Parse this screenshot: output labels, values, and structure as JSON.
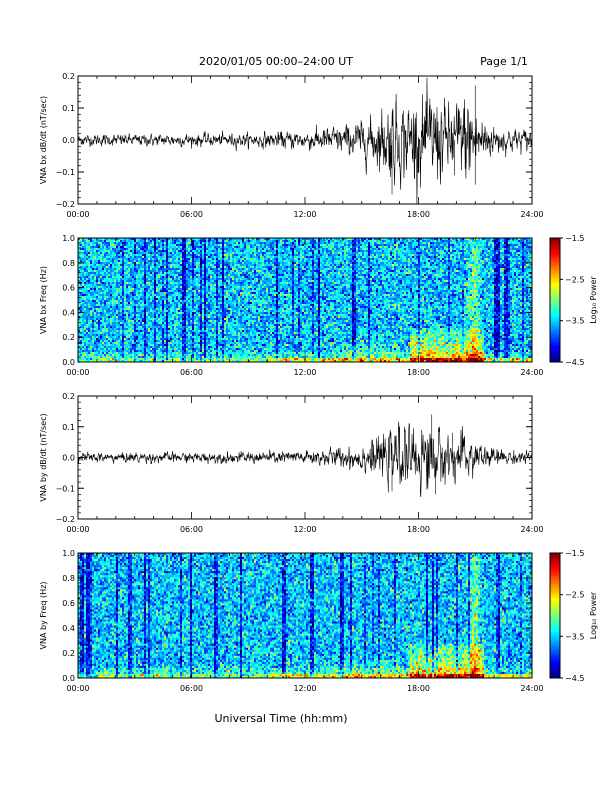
{
  "header": {
    "title": "2020/01/05  00:00–24:00 UT",
    "page": "Page 1/1"
  },
  "chart_data": [
    {
      "type": "line",
      "ylabel": "VNA bx dB/dt (nT/sec)",
      "ylim": [
        -0.2,
        0.2
      ],
      "yticks": [
        "0.2",
        "0.1",
        "0.0",
        "−0.1",
        "−0.2"
      ],
      "yvals": [
        0.2,
        0.1,
        0.0,
        -0.1,
        -0.2
      ],
      "xticks": [
        "00:00",
        "06:00",
        "12:00",
        "18:00",
        "24:00"
      ],
      "xlim": [
        0,
        24
      ],
      "envelope": {
        "x": [
          0,
          3,
          6,
          9,
          12,
          14,
          15,
          16,
          16.5,
          17,
          17.5,
          18,
          18.5,
          19,
          19.5,
          20,
          20.5,
          21,
          21.5,
          22,
          23,
          24
        ],
        "amp": [
          0.012,
          0.012,
          0.013,
          0.014,
          0.02,
          0.03,
          0.04,
          0.06,
          0.09,
          0.08,
          0.08,
          0.09,
          0.09,
          0.1,
          0.07,
          0.08,
          0.1,
          0.08,
          0.045,
          0.03,
          0.025,
          0.022
        ]
      },
      "peaks": [
        {
          "x": 16.6,
          "y": -0.17
        },
        {
          "x": 16.8,
          "y": 0.12
        },
        {
          "x": 18.6,
          "y": 0.13
        },
        {
          "x": 19.9,
          "y": -0.11
        },
        {
          "x": 21.0,
          "y": 0.17
        },
        {
          "x": 21.0,
          "y": -0.14
        }
      ]
    },
    {
      "type": "heatmap",
      "ylabel": "VNA bx Freq (Hz)",
      "ylim": [
        0.0,
        1.0
      ],
      "yticks": [
        "1.0",
        "0.8",
        "0.6",
        "0.4",
        "0.2",
        "0.0"
      ],
      "yvals": [
        1.0,
        0.8,
        0.6,
        0.4,
        0.2,
        0.0
      ],
      "xticks": [
        "00:00",
        "06:00",
        "12:00",
        "18:00",
        "24:00"
      ],
      "xlim": [
        0,
        24
      ],
      "colorbar": {
        "label": "Log₁₀ Power",
        "ticks": [
          "−1.5",
          "−2.5",
          "−3.5",
          "−4.5"
        ],
        "range": [
          -4.5,
          -1.5
        ]
      }
    },
    {
      "type": "line",
      "ylabel": "VNA by dB/dt (nT/sec)",
      "ylim": [
        -0.2,
        0.2
      ],
      "yticks": [
        "0.2",
        "0.1",
        "0.0",
        "−0.1",
        "−0.2"
      ],
      "yvals": [
        0.2,
        0.1,
        0.0,
        -0.1,
        -0.2
      ],
      "xticks": [
        "00:00",
        "06:00",
        "12:00",
        "18:00",
        "24:00"
      ],
      "xlim": [
        0,
        24
      ],
      "envelope": {
        "x": [
          0,
          3,
          6,
          9,
          12,
          14,
          15,
          16,
          16.5,
          17,
          17.5,
          18,
          18.5,
          19,
          19.5,
          20,
          20.5,
          21,
          21.5,
          22,
          23,
          24
        ],
        "amp": [
          0.01,
          0.011,
          0.011,
          0.012,
          0.015,
          0.022,
          0.03,
          0.045,
          0.055,
          0.06,
          0.06,
          0.07,
          0.08,
          0.06,
          0.05,
          0.045,
          0.05,
          0.04,
          0.025,
          0.02,
          0.015,
          0.013
        ]
      },
      "peaks": [
        {
          "x": 16.6,
          "y": -0.11
        },
        {
          "x": 17.0,
          "y": 0.1
        },
        {
          "x": 18.7,
          "y": 0.14
        },
        {
          "x": 18.9,
          "y": -0.12
        },
        {
          "x": 19.8,
          "y": 0.08
        }
      ]
    },
    {
      "type": "heatmap",
      "ylabel": "VNA by Freq (Hz)",
      "ylim": [
        0.0,
        1.0
      ],
      "yticks": [
        "1.0",
        "0.8",
        "0.6",
        "0.4",
        "0.2",
        "0.0"
      ],
      "yvals": [
        1.0,
        0.8,
        0.6,
        0.4,
        0.2,
        0.0
      ],
      "xticks": [
        "00:00",
        "06:00",
        "12:00",
        "18:00",
        "24:00"
      ],
      "xlim": [
        0,
        24
      ],
      "colorbar": {
        "label": "Log₁₀ Power",
        "ticks": [
          "−1.5",
          "−2.5",
          "−3.5",
          "−4.5"
        ],
        "range": [
          -4.5,
          -1.5
        ]
      }
    }
  ],
  "xlabel": "Universal Time (hh:mm)"
}
